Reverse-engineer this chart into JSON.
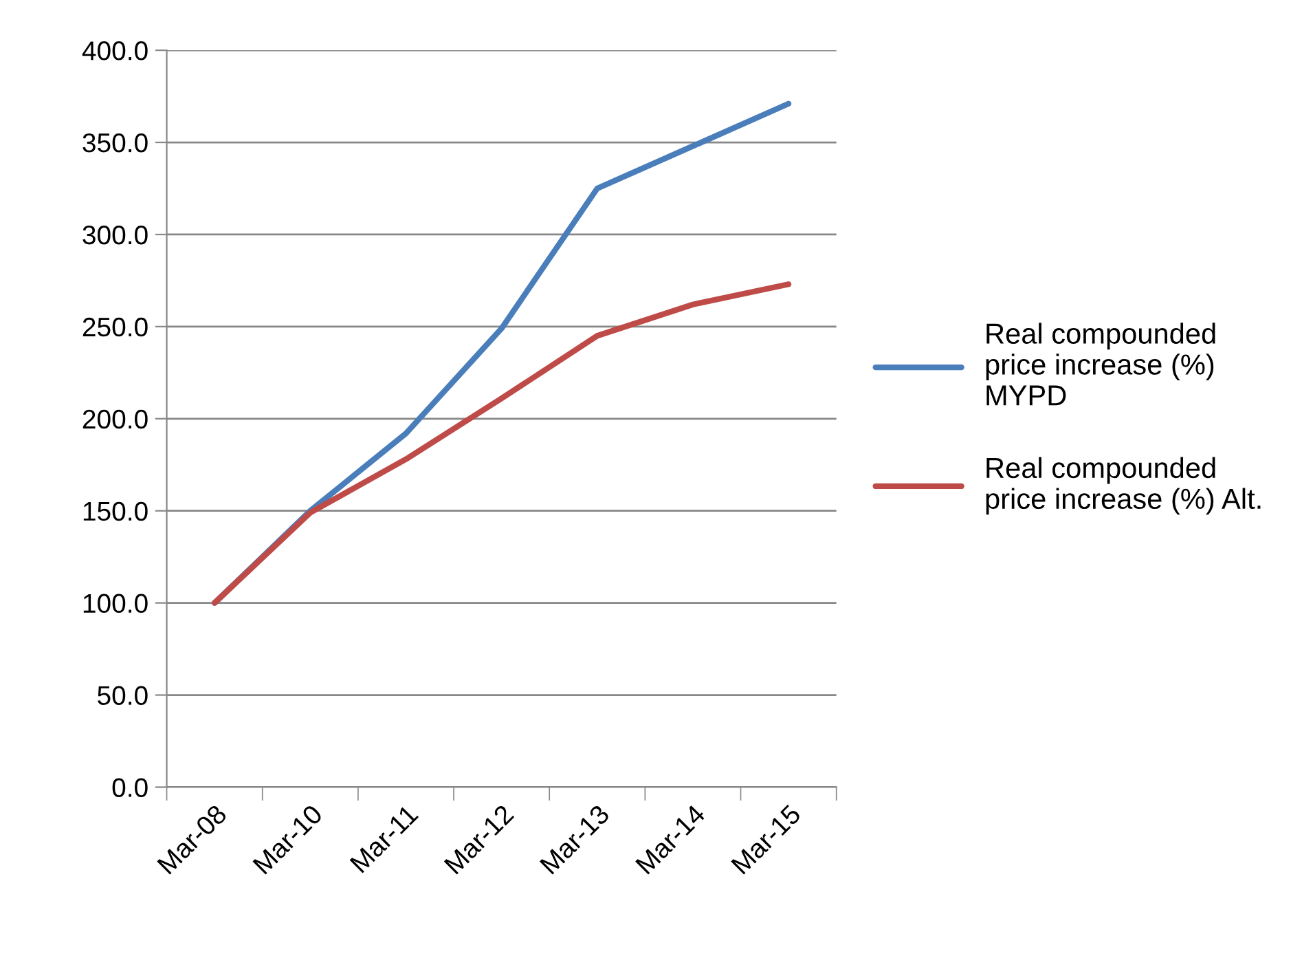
{
  "chart_data": {
    "type": "line",
    "categories": [
      "Mar-08",
      "Mar-10",
      "Mar-11",
      "Mar-12",
      "Mar-13",
      "Mar-14",
      "Mar-15"
    ],
    "series": [
      {
        "name": "Real compounded\nprice increase (%)\nMYPD",
        "color": "#4a7ebb",
        "values": [
          100,
          150,
          192,
          249,
          325,
          348,
          371
        ]
      },
      {
        "name": "Real compounded\nprice increase (%) Alt.",
        "color": "#be4b48",
        "values": [
          100,
          149,
          178,
          211,
          245,
          262,
          273
        ]
      }
    ],
    "ylim": [
      0,
      400
    ],
    "yticks": [
      {
        "value": 0,
        "label": "0.0"
      },
      {
        "value": 50,
        "label": "50.0"
      },
      {
        "value": 100,
        "label": "100.0"
      },
      {
        "value": 150,
        "label": "150.0"
      },
      {
        "value": 200,
        "label": "200.0"
      },
      {
        "value": 250,
        "label": "250.0"
      },
      {
        "value": 300,
        "label": "300.0"
      },
      {
        "value": 350,
        "label": "350.0"
      },
      {
        "value": 400,
        "label": "400.0"
      }
    ],
    "grid": "y",
    "legend": "right",
    "marker": "none",
    "line_style": "solid"
  }
}
